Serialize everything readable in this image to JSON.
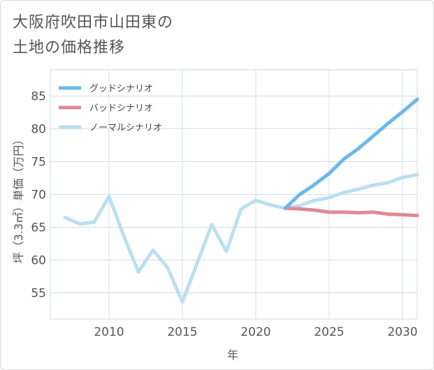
{
  "title_line1": "大阪府吹田市山田東の",
  "title_line2": "土地の価格推移",
  "chart_data": {
    "type": "line",
    "xlabel": "年",
    "ylabel": "坪（3.3㎡）単価（万円）",
    "xlim": [
      2006,
      2031
    ],
    "ylim": [
      51,
      89
    ],
    "x_ticks": [
      2010,
      2015,
      2020,
      2025,
      2030
    ],
    "y_ticks": [
      55,
      60,
      65,
      70,
      75,
      80,
      85
    ],
    "grid": true,
    "legend_position": "top-left",
    "series": [
      {
        "name": "グッドシナリオ",
        "color": "#6cb8ea",
        "x": [
          2022,
          2023,
          2024,
          2025,
          2026,
          2027,
          2028,
          2029,
          2030,
          2031
        ],
        "values": [
          67.9,
          70.0,
          71.5,
          73.2,
          75.4,
          77.0,
          78.9,
          80.8,
          82.6,
          84.5
        ]
      },
      {
        "name": "バッドシナリオ",
        "color": "#e08a93",
        "x": [
          2022,
          2023,
          2024,
          2025,
          2026,
          2027,
          2028,
          2029,
          2030,
          2031
        ],
        "values": [
          67.9,
          67.8,
          67.6,
          67.3,
          67.3,
          67.2,
          67.3,
          67.0,
          66.9,
          66.8
        ]
      },
      {
        "name": "ノーマルシナリオ",
        "color": "#bcdff0",
        "x": [
          2007,
          2008,
          2009,
          2010,
          2011,
          2012,
          2013,
          2014,
          2015,
          2016,
          2017,
          2018,
          2019,
          2020,
          2021,
          2022,
          2023,
          2024,
          2025,
          2026,
          2027,
          2028,
          2029,
          2030,
          2031
        ],
        "values": [
          66.5,
          65.5,
          65.8,
          69.7,
          63.7,
          58.2,
          61.5,
          58.8,
          53.6,
          59.5,
          65.4,
          61.3,
          67.8,
          69.1,
          68.4,
          67.9,
          68.3,
          69.1,
          69.5,
          70.3,
          70.8,
          71.4,
          71.8,
          72.6,
          73.0
        ]
      }
    ]
  }
}
